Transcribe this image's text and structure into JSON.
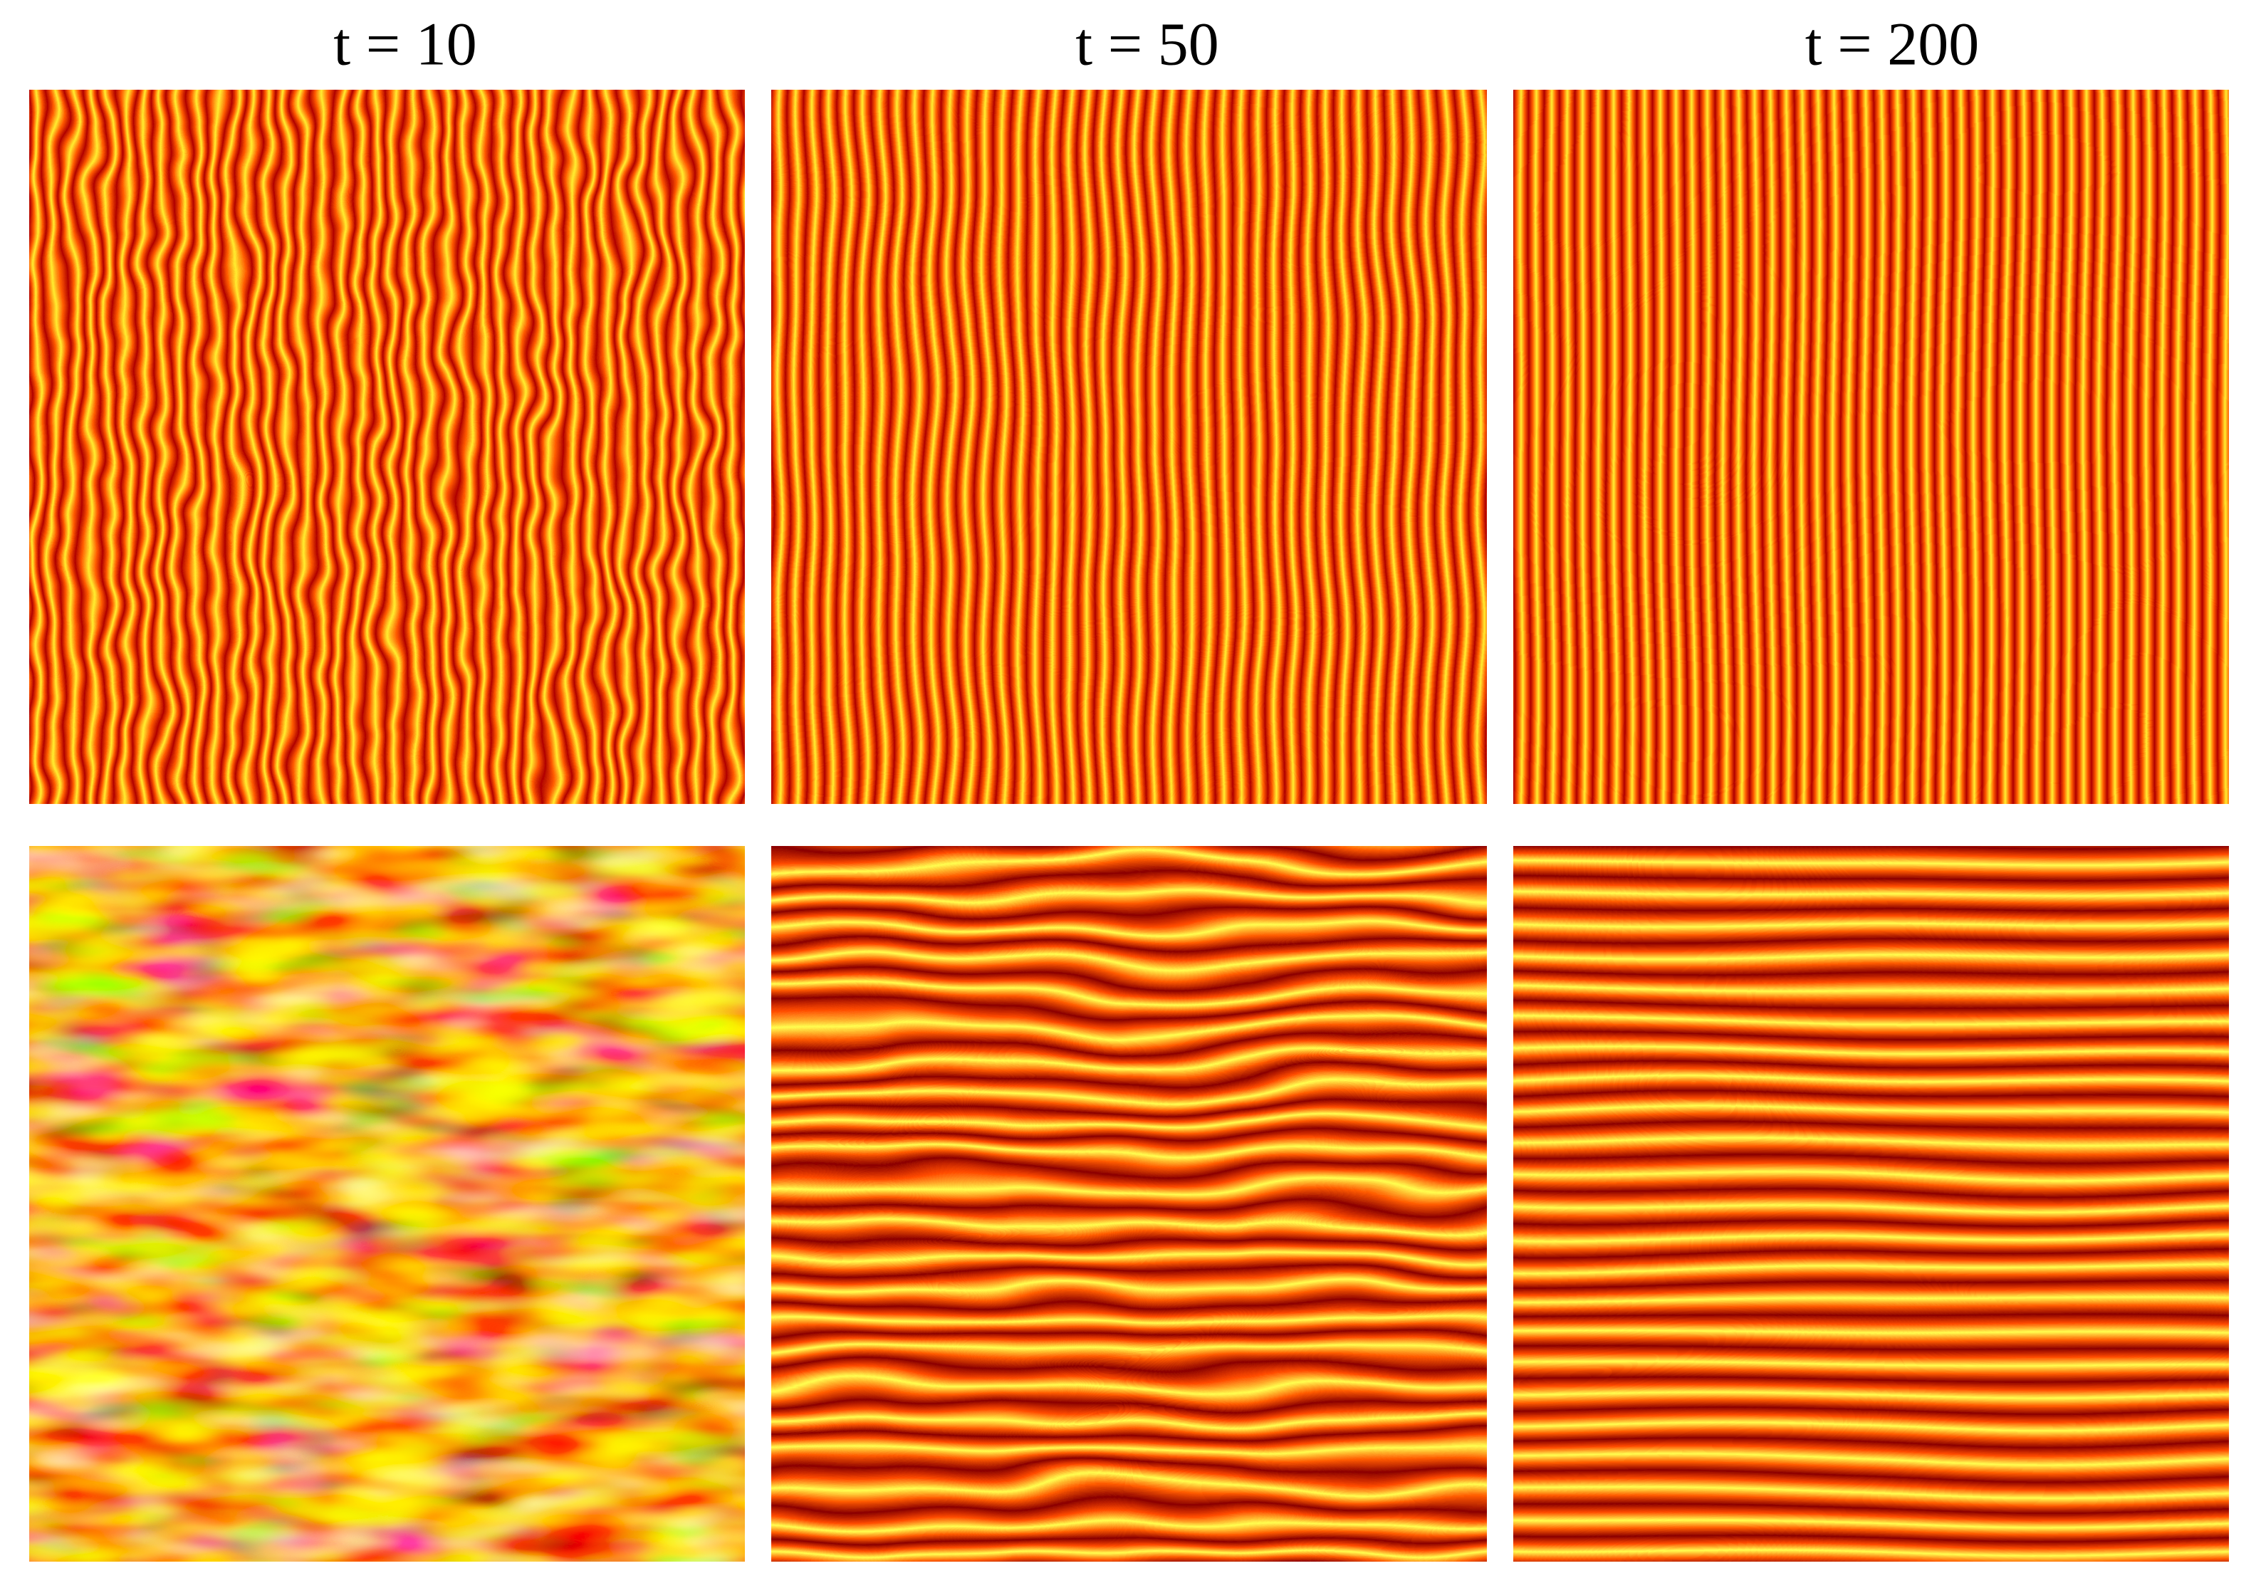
{
  "titles": [
    "t = 10",
    "t = 50",
    "t = 200"
  ]
}
